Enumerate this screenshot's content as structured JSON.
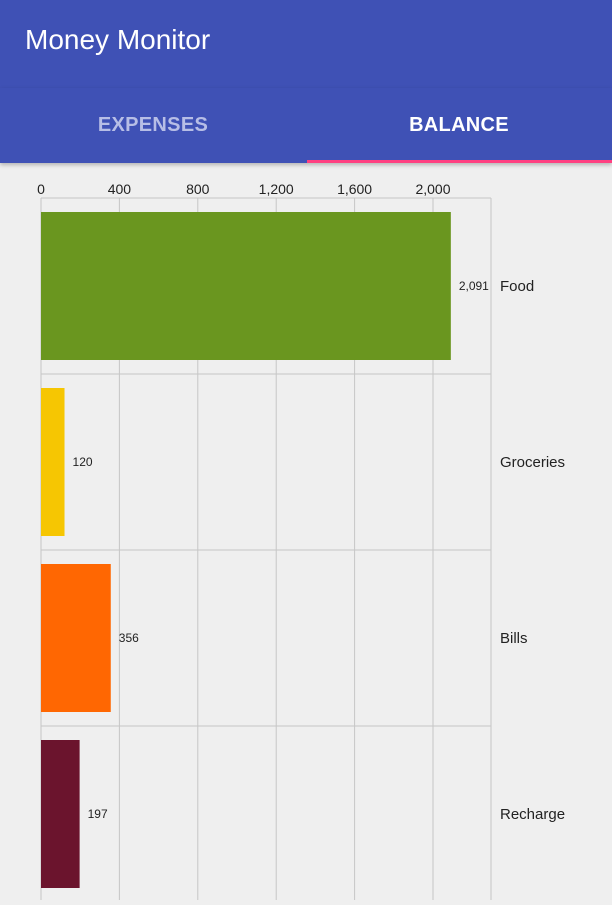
{
  "app": {
    "title": "Money Monitor"
  },
  "tabs": [
    {
      "label": "EXPENSES",
      "selected": false
    },
    {
      "label": "BALANCE",
      "selected": true
    }
  ],
  "colors": {
    "toolbar": "#3f51b5",
    "indicator": "#ff4081",
    "background": "#efefef"
  },
  "chart_data": {
    "type": "bar",
    "orientation": "horizontal",
    "title": "",
    "xlabel": "",
    "ylabel": "",
    "categories": [
      "Food",
      "Groceries",
      "Bills",
      "Recharge"
    ],
    "values": [
      2091,
      120,
      356,
      197
    ],
    "value_labels": [
      "2,091",
      "120",
      "356",
      "197"
    ],
    "colors": [
      "#6a961f",
      "#f6c602",
      "#ff6702",
      "#6b142d"
    ],
    "xticks": [
      0,
      400,
      800,
      1200,
      1600,
      2000
    ],
    "xtick_labels": [
      "0",
      "400",
      "800",
      "1,200",
      "1,600",
      "2,000"
    ],
    "xlim": [
      0,
      2300
    ],
    "x_axis_position": "top",
    "category_labels_position": "right",
    "grid": true,
    "legend": "none"
  }
}
